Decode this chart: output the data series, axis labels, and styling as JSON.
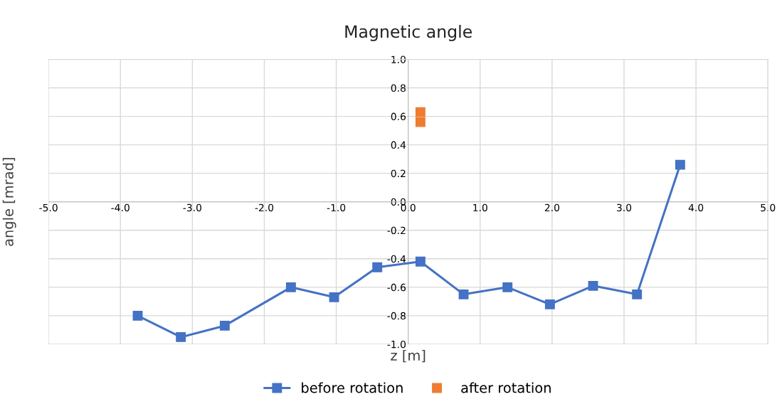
{
  "chart_data": {
    "type": "line",
    "title": "Magnetic angle",
    "xlabel": "z [m]",
    "ylabel": "angle [mrad]",
    "xlim": [
      -5.0,
      5.0
    ],
    "xticks": [
      {
        "value": -5,
        "label": "-5.0"
      },
      {
        "value": -4,
        "label": "-4.0"
      },
      {
        "value": -3,
        "label": "-3.0"
      },
      {
        "value": -2,
        "label": "-2.0"
      },
      {
        "value": -1,
        "label": "-1.0"
      },
      {
        "value": 0,
        "label": "0.0"
      },
      {
        "value": 1,
        "label": "1.0"
      },
      {
        "value": 2,
        "label": "2.0"
      },
      {
        "value": 3,
        "label": "3.0"
      },
      {
        "value": 4,
        "label": "4.0"
      },
      {
        "value": 5,
        "label": "5.0"
      }
    ],
    "ylim": [
      -1.0,
      1.0
    ],
    "yticks": [
      {
        "value": -1,
        "label": "-1.0"
      },
      {
        "value": -0.8,
        "label": "-0.8"
      },
      {
        "value": -0.6,
        "label": "-0.6"
      },
      {
        "value": -0.4,
        "label": "-0.4"
      },
      {
        "value": -0.2,
        "label": "-0.2"
      },
      {
        "value": 0,
        "label": "0.0"
      },
      {
        "value": 0.2,
        "label": "0.2"
      },
      {
        "value": 0.4,
        "label": "0.4"
      },
      {
        "value": 0.6,
        "label": "0.6"
      },
      {
        "value": 0.8,
        "label": "0.8"
      },
      {
        "value": 1,
        "label": "1.0"
      }
    ],
    "grid": true,
    "legend": "bottom",
    "marker": "square",
    "line_style": "solid",
    "series": [
      {
        "name": "before rotation",
        "color": "#4472c4",
        "x": [
          -3.76,
          -3.16,
          -2.55,
          -1.63,
          -1.03,
          -0.43,
          0.17,
          0.77,
          1.38,
          1.97,
          2.57,
          3.18,
          3.78
        ],
        "values": [
          -0.8,
          -0.95,
          -0.87,
          -0.6,
          -0.67,
          -0.46,
          -0.42,
          -0.65,
          -0.6,
          -0.72,
          -0.59,
          -0.65,
          0.26
        ]
      },
      {
        "name": "after rotation",
        "type": "scatter",
        "color": "#ed7d31",
        "x": [
          0.17,
          0.17
        ],
        "values": [
          0.63,
          0.56
        ]
      }
    ]
  }
}
